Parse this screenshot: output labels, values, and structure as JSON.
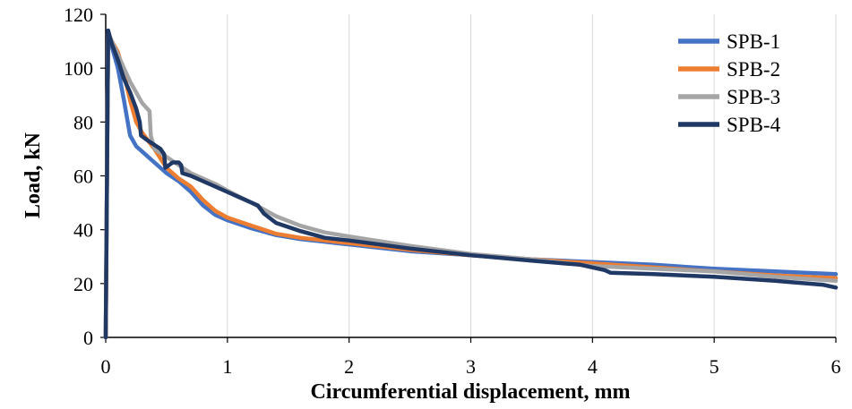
{
  "chart_data": {
    "type": "line",
    "xlabel": "Circumferential displacement, mm",
    "ylabel": "Load, kN",
    "xlim": [
      0,
      6
    ],
    "ylim": [
      0,
      120
    ],
    "xticks": [
      "0",
      "1",
      "2",
      "3",
      "4",
      "5",
      "6"
    ],
    "yticks": [
      "0",
      "20",
      "40",
      "60",
      "80",
      "100",
      "120"
    ],
    "grid": "vertical",
    "legend_position": "top-right",
    "series": [
      {
        "name": "SPB-1",
        "color": "#4472C4",
        "x": [
          0,
          0.02,
          0.05,
          0.1,
          0.15,
          0.2,
          0.25,
          0.3,
          0.35,
          0.4,
          0.5,
          0.6,
          0.7,
          0.8,
          0.9,
          1.0,
          1.2,
          1.4,
          1.6,
          1.8,
          2.0,
          2.5,
          3.0,
          3.5,
          4.0,
          4.5,
          5.0,
          5.5,
          6.0
        ],
        "y": [
          0,
          114,
          108,
          100,
          88,
          75,
          71,
          69,
          67,
          65,
          61,
          58,
          54,
          49,
          45.5,
          43.5,
          40.5,
          38,
          36.5,
          35.5,
          34.5,
          32,
          30.5,
          29,
          28,
          27,
          25.5,
          24.5,
          23.5
        ]
      },
      {
        "name": "SPB-2",
        "color": "#ED7D31",
        "x": [
          0,
          0.02,
          0.05,
          0.1,
          0.15,
          0.2,
          0.25,
          0.3,
          0.35,
          0.4,
          0.5,
          0.6,
          0.7,
          0.8,
          0.9,
          1.0,
          1.2,
          1.4,
          1.6,
          1.8,
          2.0,
          2.5,
          3.0,
          3.5,
          4.0,
          4.5,
          5.0,
          5.5,
          6.0
        ],
        "y": [
          0,
          113,
          110,
          106,
          98,
          88,
          80,
          76,
          73,
          70,
          63,
          59,
          56,
          51,
          47,
          44.5,
          41.5,
          38.5,
          37,
          36,
          35,
          32.5,
          30.5,
          29,
          27.5,
          26,
          24.5,
          23,
          22
        ]
      },
      {
        "name": "SPB-3",
        "color": "#A5A5A5",
        "x": [
          0,
          0.02,
          0.05,
          0.1,
          0.15,
          0.2,
          0.25,
          0.3,
          0.36,
          0.37,
          0.4,
          0.5,
          0.6,
          0.7,
          0.8,
          0.9,
          1.0,
          1.2,
          1.4,
          1.6,
          1.8,
          2.0,
          2.5,
          3.0,
          3.5,
          4.0,
          4.5,
          5.0,
          5.5,
          6.0
        ],
        "y": [
          0,
          113,
          110,
          105,
          100,
          95,
          91,
          87,
          84,
          75,
          70,
          67,
          64,
          61,
          59,
          57,
          54.5,
          50,
          45,
          41.5,
          39,
          37.5,
          34,
          31,
          29,
          26.5,
          25.5,
          24.5,
          22.5,
          21
        ]
      },
      {
        "name": "SPB-4",
        "color": "#203864",
        "x": [
          0,
          0.02,
          0.05,
          0.1,
          0.15,
          0.2,
          0.25,
          0.28,
          0.29,
          0.35,
          0.45,
          0.48,
          0.49,
          0.55,
          0.6,
          0.62,
          0.63,
          0.7,
          0.8,
          0.9,
          1.0,
          1.1,
          1.25,
          1.3,
          1.4,
          1.6,
          1.8,
          2.0,
          2.5,
          3.0,
          3.5,
          3.9,
          4.0,
          4.1,
          4.15,
          4.5,
          5.0,
          5.5,
          5.9,
          6.0
        ],
        "y": [
          0,
          114,
          109,
          103,
          96,
          91,
          85,
          80,
          75,
          73,
          70,
          68,
          63,
          65,
          65,
          64,
          61,
          60,
          58,
          56,
          54,
          52,
          49,
          46,
          42.5,
          39.5,
          37,
          36,
          33,
          30.5,
          28.5,
          27,
          26,
          25,
          24,
          23.5,
          22.5,
          21,
          19.5,
          18.5
        ]
      }
    ]
  }
}
